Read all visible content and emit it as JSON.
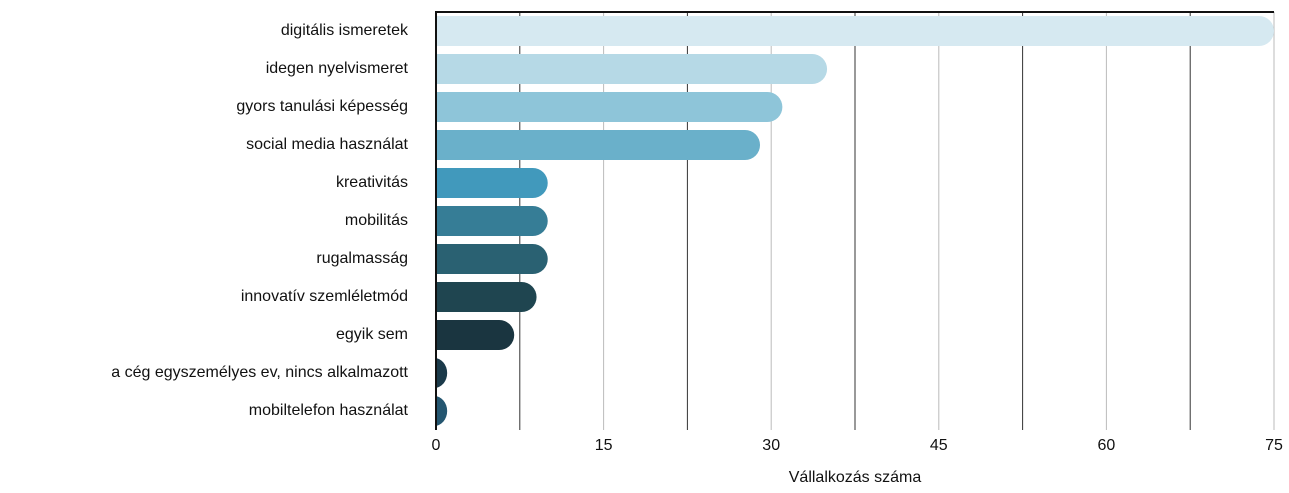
{
  "chart_data": {
    "type": "bar",
    "orientation": "horizontal",
    "x_label": "Vállalkozás száma",
    "categories": [
      "digitális ismeretek",
      "idegen nyelvismeret",
      "gyors tanulási képesség",
      "social media használat",
      "kreativitás",
      "mobilitás",
      "rugalmasság",
      "innovatív szemléletmód",
      "egyik sem",
      "a cég egyszemélyes ev, nincs alkalmazott",
      "mobiltelefon használat"
    ],
    "values": [
      75,
      35,
      31,
      29,
      10,
      10,
      10,
      9,
      7,
      1,
      1
    ],
    "colors": [
      "#d6e9f1",
      "#b6d9e6",
      "#8ec5d9",
      "#6ab0ca",
      "#4199bc",
      "#367d96",
      "#2a6172",
      "#1f4550",
      "#1a3540",
      "#1b3a4a",
      "#245670"
    ],
    "xlim": [
      0,
      75
    ],
    "xticks": [
      0,
      15,
      30,
      45,
      60,
      75
    ],
    "minor_xticks": [
      7.5,
      22.5,
      37.5,
      52.5,
      67.5
    ],
    "grid": true
  }
}
